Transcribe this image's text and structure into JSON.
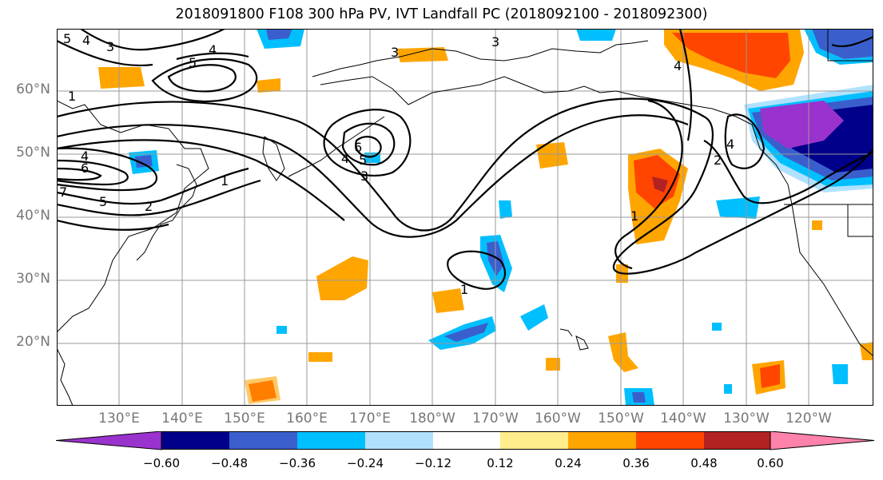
{
  "title": "2018091800 F108 300 hPa PV, IVT Landfall PC (2018092100 - 2018092300)",
  "lat_labels": [
    "60°N",
    "50°N",
    "40°N",
    "30°N",
    "20°N"
  ],
  "lon_labels": [
    "130°E",
    "140°E",
    "150°E",
    "160°E",
    "170°E",
    "180°W",
    "170°W",
    "160°W",
    "150°W",
    "140°W",
    "130°W",
    "120°W"
  ],
  "colorbar": {
    "ticks": [
      "−0.60",
      "−0.48",
      "−0.36",
      "−0.24",
      "−0.12",
      "0.12",
      "0.24",
      "0.36",
      "0.48",
      "0.60"
    ],
    "colors": [
      "#9a32cd",
      "#00008b",
      "#3a5fcd",
      "#00bfff",
      "#b0e2ff",
      "#ffffff",
      "#ffec8b",
      "#ffa500",
      "#ff4500",
      "#b22222",
      "#ff82ab"
    ]
  },
  "contour_labels": [
    "5",
    "4",
    "3",
    "5",
    "4",
    "1",
    "3",
    "3",
    "4",
    "6",
    "5",
    "4",
    "3",
    "6",
    "5",
    "7",
    "4",
    "2",
    "1",
    "4",
    "2",
    "1",
    "1"
  ]
}
